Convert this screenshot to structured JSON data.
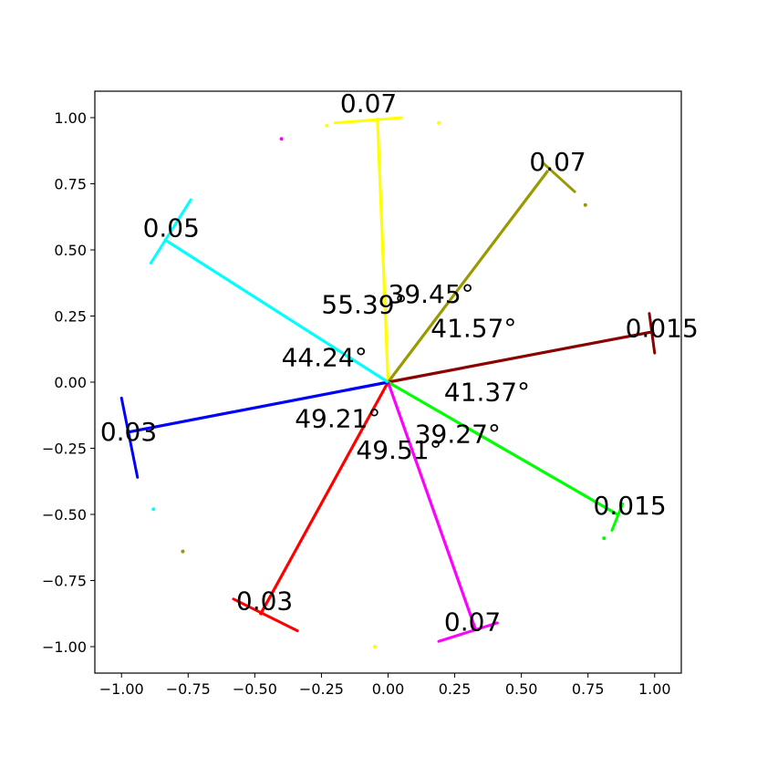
{
  "chart_data": {
    "type": "scatter",
    "title": "",
    "xlabel": "",
    "ylabel": "",
    "xlim": [
      -1.1,
      1.1
    ],
    "ylim": [
      -1.1,
      1.1
    ],
    "grid": false,
    "x_ticks": [
      -1.0,
      -0.75,
      -0.5,
      -0.25,
      0.0,
      0.25,
      0.5,
      0.75,
      1.0
    ],
    "x_tick_labels": [
      "−1.00",
      "−0.75",
      "−0.50",
      "−0.25",
      "0.00",
      "0.25",
      "0.50",
      "0.75",
      "1.00"
    ],
    "y_ticks": [
      1.0,
      0.75,
      0.5,
      0.25,
      0.0,
      -0.25,
      -0.5,
      -0.75,
      -1.0
    ],
    "y_tick_labels": [
      "1.00",
      "0.75",
      "0.50",
      "0.25",
      "0.00",
      "−0.25",
      "−0.50",
      "−0.75",
      "−1.00"
    ],
    "rays": [
      {
        "color": "#ffff00",
        "end": [
          -0.04,
          1.0
        ],
        "arc_label": "0.07",
        "label_pos": [
          -0.18,
          1.02
        ],
        "arc": [
          [
            -0.2,
            0.98
          ],
          [
            0.05,
            1.0
          ]
        ],
        "scatter": [
          [
            -0.23,
            0.97
          ],
          [
            0.19,
            0.98
          ],
          [
            -0.05,
            -1.0
          ]
        ]
      },
      {
        "color": "#999900",
        "end": [
          0.6,
          0.8
        ],
        "arc_label": "0.07",
        "label_pos": [
          0.53,
          0.8
        ],
        "arc": [
          [
            0.58,
            0.83
          ],
          [
            0.7,
            0.72
          ]
        ],
        "scatter": [
          [
            0.74,
            0.67
          ],
          [
            -0.77,
            -0.64
          ]
        ]
      },
      {
        "color": "#8b0000",
        "end": [
          0.99,
          0.19
        ],
        "arc_label": "0.015",
        "label_pos": [
          0.89,
          0.17
        ],
        "arc": [
          [
            0.98,
            0.26
          ],
          [
            1.0,
            0.11
          ]
        ],
        "scatter": []
      },
      {
        "color": "#00ff00",
        "end": [
          0.86,
          -0.5
        ],
        "arc_label": "0.015",
        "label_pos": [
          0.77,
          -0.5
        ],
        "arc": [
          [
            0.88,
            -0.46
          ],
          [
            0.84,
            -0.56
          ]
        ],
        "scatter": [
          [
            0.81,
            -0.59
          ]
        ]
      },
      {
        "color": "#ff00ff",
        "end": [
          0.33,
          -0.94
        ],
        "arc_label": "0.07",
        "label_pos": [
          0.21,
          -0.94
        ],
        "arc": [
          [
            0.19,
            -0.98
          ],
          [
            0.41,
            -0.91
          ]
        ],
        "scatter": [
          [
            -0.4,
            0.92
          ]
        ]
      },
      {
        "color": "#ff0000",
        "end": [
          -0.48,
          -0.88
        ],
        "arc_label": "0.03",
        "label_pos": [
          -0.57,
          -0.86
        ],
        "arc": [
          [
            -0.58,
            -0.82
          ],
          [
            -0.34,
            -0.94
          ]
        ],
        "scatter": []
      },
      {
        "color": "#0000ff",
        "end": [
          -0.98,
          -0.19
        ],
        "arc_label": "0.03",
        "label_pos": [
          -1.08,
          -0.22
        ],
        "arc": [
          [
            -1.0,
            -0.06
          ],
          [
            -0.94,
            -0.36
          ]
        ],
        "scatter": []
      },
      {
        "color": "#00ffff",
        "end": [
          -0.84,
          0.54
        ],
        "arc_label": "0.05",
        "label_pos": [
          -0.92,
          0.55
        ],
        "arc": [
          [
            -0.74,
            0.69
          ],
          [
            -0.89,
            0.45
          ]
        ],
        "scatter": [
          [
            -0.88,
            -0.48
          ]
        ]
      }
    ],
    "angle_labels": [
      {
        "text": "55.39°",
        "pos": [
          -0.25,
          0.26
        ]
      },
      {
        "text": "39.45°",
        "pos": [
          0.0,
          0.3
        ]
      },
      {
        "text": "41.57°",
        "pos": [
          0.16,
          0.17
        ]
      },
      {
        "text": "44.24°",
        "pos": [
          -0.4,
          0.06
        ]
      },
      {
        "text": "41.37°",
        "pos": [
          0.21,
          -0.07
        ]
      },
      {
        "text": "49.21°",
        "pos": [
          -0.35,
          -0.17
        ]
      },
      {
        "text": "39.27°",
        "pos": [
          0.1,
          -0.23
        ]
      },
      {
        "text": "49.51°",
        "pos": [
          -0.12,
          -0.29
        ]
      }
    ]
  }
}
